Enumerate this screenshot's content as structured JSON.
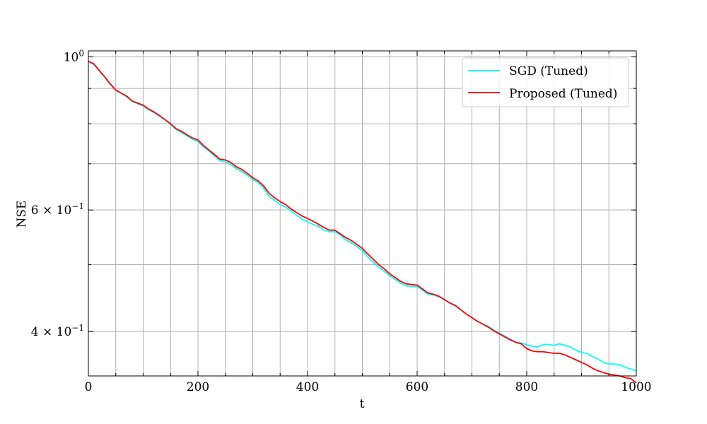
{
  "chart_data": {
    "type": "line",
    "title": "",
    "xlabel": "t",
    "ylabel": "NSE",
    "xlim": [
      0,
      1000
    ],
    "ylim": [
      0.345,
      1.02
    ],
    "yscale": "log",
    "grid": true,
    "legend_position": "top-right",
    "x_ticks": [
      0,
      200,
      400,
      600,
      800,
      1000
    ],
    "x_tick_labels": [
      "0",
      "200",
      "400",
      "600",
      "800",
      "1000"
    ],
    "y_ticks": [
      {
        "value": 1.0,
        "base": "10",
        "exp": "0",
        "mult": ""
      },
      {
        "value": 0.6,
        "base": "10",
        "exp": "−1",
        "mult": "6 × "
      },
      {
        "value": 0.4,
        "base": "10",
        "exp": "−1",
        "mult": "4 × "
      }
    ],
    "series": [
      {
        "name": "SGD (Tuned)",
        "color": "#00ffff",
        "x": [
          0,
          10,
          20,
          30,
          40,
          50,
          60,
          70,
          80,
          90,
          100,
          110,
          120,
          130,
          140,
          150,
          160,
          170,
          180,
          190,
          200,
          210,
          220,
          230,
          240,
          250,
          260,
          270,
          280,
          290,
          300,
          310,
          320,
          330,
          340,
          350,
          360,
          370,
          380,
          390,
          400,
          410,
          420,
          430,
          440,
          450,
          460,
          470,
          480,
          490,
          500,
          510,
          520,
          530,
          540,
          550,
          560,
          570,
          580,
          590,
          600,
          610,
          620,
          630,
          640,
          650,
          660,
          670,
          680,
          690,
          700,
          710,
          720,
          730,
          740,
          750,
          760,
          770,
          780,
          790,
          800,
          810,
          820,
          830,
          840,
          850,
          860,
          870,
          880,
          890,
          900,
          910,
          920,
          930,
          940,
          950,
          960,
          970,
          980,
          990,
          1000
        ],
        "values": [
          0.985,
          0.975,
          0.955,
          0.935,
          0.915,
          0.895,
          0.885,
          0.875,
          0.862,
          0.855,
          0.849,
          0.838,
          0.83,
          0.82,
          0.81,
          0.798,
          0.785,
          0.777,
          0.768,
          0.76,
          0.754,
          0.741,
          0.73,
          0.719,
          0.707,
          0.705,
          0.698,
          0.689,
          0.682,
          0.674,
          0.664,
          0.657,
          0.645,
          0.628,
          0.62,
          0.611,
          0.606,
          0.598,
          0.59,
          0.582,
          0.577,
          0.572,
          0.568,
          0.561,
          0.558,
          0.558,
          0.552,
          0.543,
          0.538,
          0.531,
          0.524,
          0.513,
          0.504,
          0.496,
          0.489,
          0.482,
          0.476,
          0.47,
          0.466,
          0.465,
          0.465,
          0.459,
          0.453,
          0.452,
          0.449,
          0.445,
          0.44,
          0.437,
          0.43,
          0.424,
          0.419,
          0.414,
          0.41,
          0.407,
          0.402,
          0.398,
          0.394,
          0.39,
          0.386,
          0.385,
          0.383,
          0.381,
          0.38,
          0.383,
          0.383,
          0.382,
          0.384,
          0.382,
          0.38,
          0.376,
          0.373,
          0.372,
          0.368,
          0.365,
          0.361,
          0.359,
          0.359,
          0.358,
          0.355,
          0.353,
          0.351
        ]
      },
      {
        "name": "Proposed (Tuned)",
        "color": "#ff0000",
        "x": [
          0,
          10,
          20,
          30,
          40,
          50,
          60,
          70,
          80,
          90,
          100,
          110,
          120,
          130,
          140,
          150,
          160,
          170,
          180,
          190,
          200,
          210,
          220,
          230,
          240,
          250,
          260,
          270,
          280,
          290,
          300,
          310,
          320,
          330,
          340,
          350,
          360,
          370,
          380,
          390,
          400,
          410,
          420,
          430,
          440,
          450,
          460,
          470,
          480,
          490,
          500,
          510,
          520,
          530,
          540,
          550,
          560,
          570,
          580,
          590,
          600,
          610,
          620,
          630,
          640,
          650,
          660,
          670,
          680,
          690,
          700,
          710,
          720,
          730,
          740,
          750,
          760,
          770,
          780,
          790,
          800,
          810,
          820,
          830,
          840,
          850,
          860,
          870,
          880,
          890,
          900,
          910,
          920,
          930,
          940,
          950,
          960,
          970,
          980,
          990,
          1000
        ],
        "values": [
          0.985,
          0.977,
          0.955,
          0.935,
          0.913,
          0.895,
          0.886,
          0.877,
          0.863,
          0.857,
          0.851,
          0.84,
          0.832,
          0.822,
          0.811,
          0.8,
          0.787,
          0.78,
          0.771,
          0.763,
          0.758,
          0.744,
          0.733,
          0.722,
          0.711,
          0.709,
          0.703,
          0.693,
          0.687,
          0.678,
          0.668,
          0.661,
          0.65,
          0.634,
          0.625,
          0.617,
          0.611,
          0.602,
          0.595,
          0.588,
          0.583,
          0.578,
          0.572,
          0.566,
          0.561,
          0.561,
          0.554,
          0.547,
          0.542,
          0.535,
          0.528,
          0.518,
          0.509,
          0.5,
          0.493,
          0.485,
          0.479,
          0.473,
          0.469,
          0.468,
          0.467,
          0.461,
          0.455,
          0.453,
          0.45,
          0.445,
          0.44,
          0.436,
          0.43,
          0.424,
          0.419,
          0.414,
          0.41,
          0.406,
          0.401,
          0.397,
          0.393,
          0.389,
          0.386,
          0.384,
          0.378,
          0.375,
          0.374,
          0.374,
          0.373,
          0.372,
          0.372,
          0.37,
          0.367,
          0.364,
          0.361,
          0.358,
          0.354,
          0.351,
          0.349,
          0.347,
          0.346,
          0.345,
          0.343,
          0.342,
          0.337
        ]
      }
    ]
  }
}
